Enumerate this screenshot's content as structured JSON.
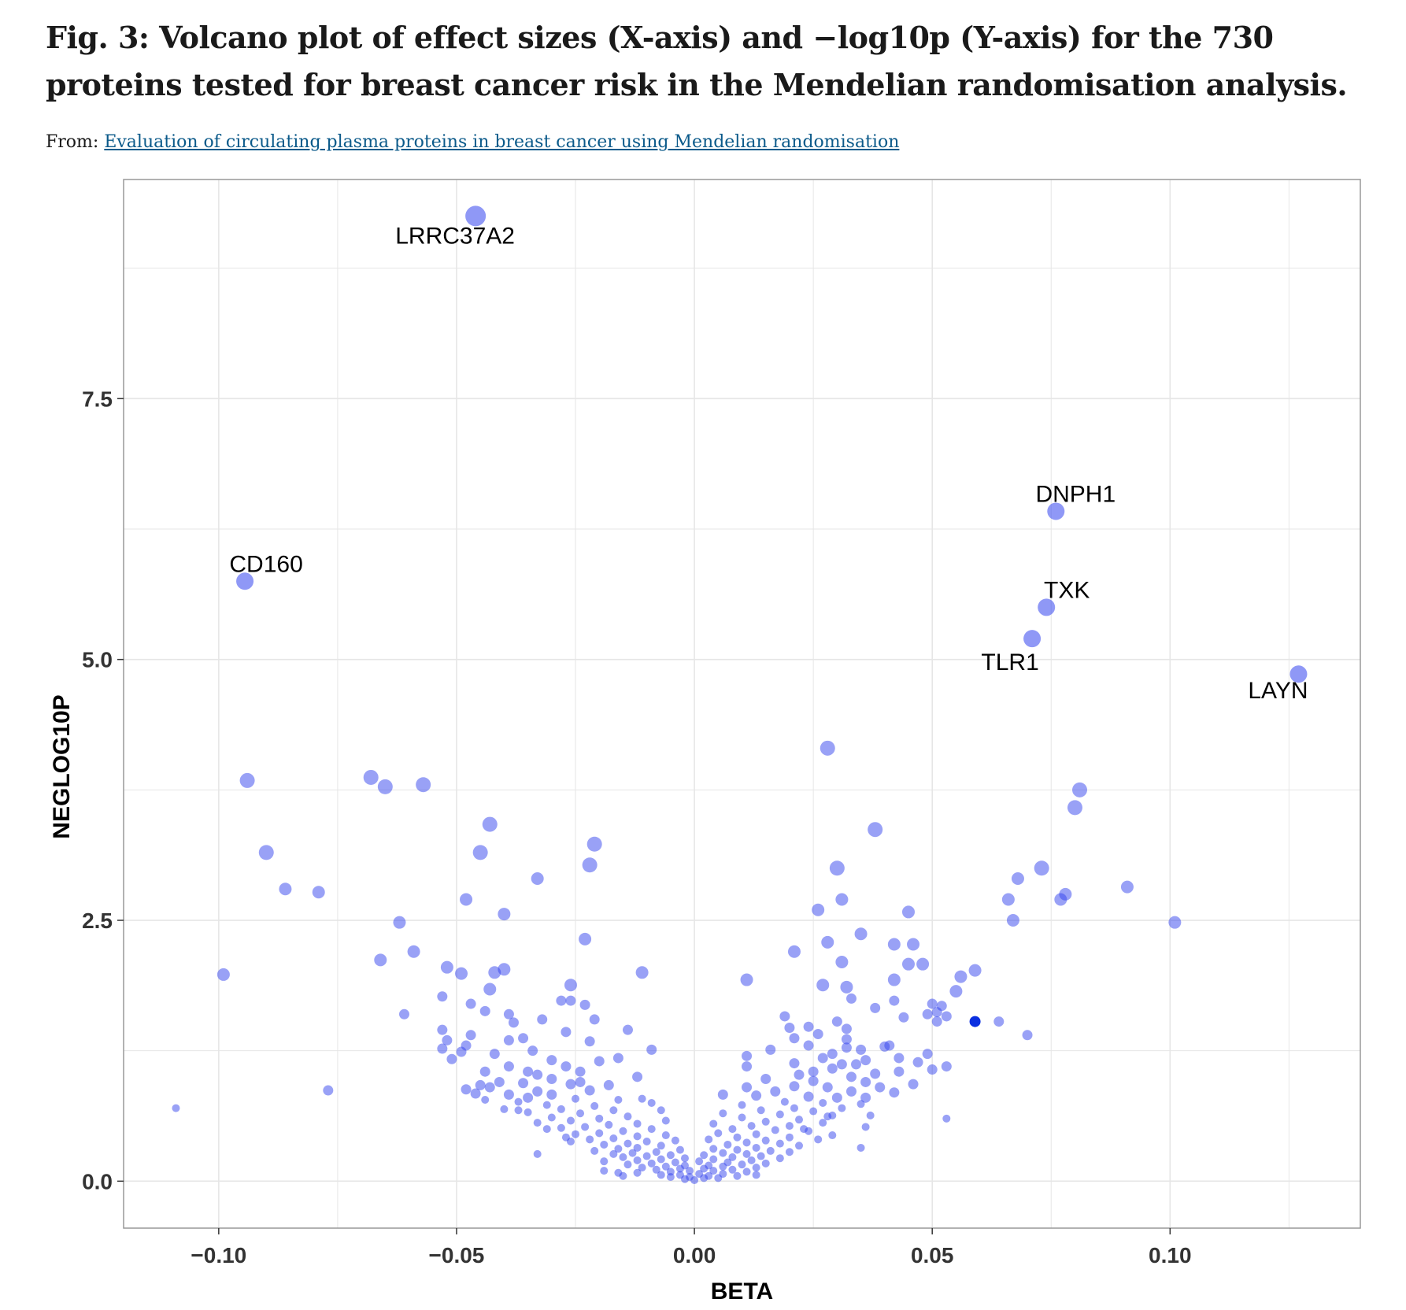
{
  "figure": {
    "title": "Fig. 3: Volcano plot of effect sizes (X-axis) and −log10p (Y-axis) for the 730 proteins tested for breast cancer risk in the Mendelian randomisation analysis.",
    "from_prefix": "From:",
    "source_link": "Evaluation of circulating plasma proteins in breast cancer using Mendelian randomisation"
  },
  "chart_data": {
    "type": "scatter",
    "xlabel": "BETA",
    "ylabel": "NEGLOG10P",
    "xlim": [
      -0.12,
      0.14
    ],
    "ylim": [
      -0.45,
      9.6
    ],
    "x_ticks": [
      -0.1,
      -0.05,
      0.0,
      0.05,
      0.1
    ],
    "x_tick_labels": [
      "−0.10",
      "−0.05",
      "0.00",
      "0.05",
      "0.10"
    ],
    "y_ticks": [
      0.0,
      2.5,
      5.0,
      7.5
    ],
    "y_tick_labels": [
      "0.0",
      "2.5",
      "5.0",
      "7.5"
    ],
    "grid": true,
    "colors": {
      "point": "#3344ee",
      "highlight": "#0a2fe0",
      "grid": "#e6e6e6",
      "panel_border": "#999999"
    },
    "labeled_points": [
      {
        "label": "LRRC37A2",
        "x": -0.046,
        "y": 9.25
      },
      {
        "label": "DNPH1",
        "x": 0.076,
        "y": 6.42
      },
      {
        "label": "CD160",
        "x": -0.0945,
        "y": 5.75
      },
      {
        "label": "TXK",
        "x": 0.074,
        "y": 5.5
      },
      {
        "label": "TLR1",
        "x": 0.071,
        "y": 5.2
      },
      {
        "label": "LAYN",
        "x": 0.127,
        "y": 4.86
      }
    ],
    "points": [
      {
        "x": 0.028,
        "y": 4.15
      },
      {
        "x": -0.094,
        "y": 3.84
      },
      {
        "x": -0.068,
        "y": 3.87
      },
      {
        "x": -0.065,
        "y": 3.78
      },
      {
        "x": -0.057,
        "y": 3.8
      },
      {
        "x": 0.081,
        "y": 3.75
      },
      {
        "x": 0.08,
        "y": 3.58
      },
      {
        "x": -0.043,
        "y": 3.42
      },
      {
        "x": 0.038,
        "y": 3.37
      },
      {
        "x": -0.021,
        "y": 3.23
      },
      {
        "x": -0.045,
        "y": 3.15
      },
      {
        "x": -0.09,
        "y": 3.15
      },
      {
        "x": -0.022,
        "y": 3.03
      },
      {
        "x": 0.03,
        "y": 3.0
      },
      {
        "x": 0.073,
        "y": 3.0
      },
      {
        "x": 0.068,
        "y": 2.9
      },
      {
        "x": -0.033,
        "y": 2.9
      },
      {
        "x": 0.091,
        "y": 2.82
      },
      {
        "x": -0.086,
        "y": 2.8
      },
      {
        "x": -0.079,
        "y": 2.77
      },
      {
        "x": 0.078,
        "y": 2.75
      },
      {
        "x": 0.077,
        "y": 2.7
      },
      {
        "x": -0.048,
        "y": 2.7
      },
      {
        "x": 0.066,
        "y": 2.7
      },
      {
        "x": 0.031,
        "y": 2.7
      },
      {
        "x": 0.026,
        "y": 2.6
      },
      {
        "x": 0.045,
        "y": 2.58
      },
      {
        "x": -0.04,
        "y": 2.56
      },
      {
        "x": 0.067,
        "y": 2.5
      },
      {
        "x": 0.101,
        "y": 2.48
      },
      {
        "x": -0.062,
        "y": 2.48
      },
      {
        "x": 0.035,
        "y": 2.37
      },
      {
        "x": -0.023,
        "y": 2.32
      },
      {
        "x": 0.028,
        "y": 2.29
      },
      {
        "x": 0.042,
        "y": 2.27
      },
      {
        "x": 0.046,
        "y": 2.27
      },
      {
        "x": -0.059,
        "y": 2.2
      },
      {
        "x": 0.021,
        "y": 2.2
      },
      {
        "x": -0.066,
        "y": 2.12
      },
      {
        "x": 0.031,
        "y": 2.1
      },
      {
        "x": 0.045,
        "y": 2.08
      },
      {
        "x": 0.048,
        "y": 2.08
      },
      {
        "x": -0.052,
        "y": 2.05
      },
      {
        "x": -0.04,
        "y": 2.03
      },
      {
        "x": -0.011,
        "y": 2.0
      },
      {
        "x": -0.049,
        "y": 1.99
      },
      {
        "x": -0.099,
        "y": 1.98
      },
      {
        "x": -0.042,
        "y": 2.0
      },
      {
        "x": 0.059,
        "y": 2.02
      },
      {
        "x": 0.056,
        "y": 1.96
      },
      {
        "x": 0.042,
        "y": 1.93
      },
      {
        "x": 0.011,
        "y": 1.93
      },
      {
        "x": -0.026,
        "y": 1.88
      },
      {
        "x": 0.027,
        "y": 1.88
      },
      {
        "x": 0.032,
        "y": 1.86
      },
      {
        "x": -0.043,
        "y": 1.84
      },
      {
        "x": 0.055,
        "y": 1.82
      },
      {
        "x": -0.053,
        "y": 1.77
      },
      {
        "x": -0.028,
        "y": 1.73
      },
      {
        "x": -0.026,
        "y": 1.73
      },
      {
        "x": 0.033,
        "y": 1.75
      },
      {
        "x": 0.042,
        "y": 1.73
      },
      {
        "x": -0.047,
        "y": 1.7
      },
      {
        "x": -0.023,
        "y": 1.69
      },
      {
        "x": 0.05,
        "y": 1.7
      },
      {
        "x": 0.052,
        "y": 1.68
      },
      {
        "x": 0.038,
        "y": 1.66
      },
      {
        "x": 0.051,
        "y": 1.62
      },
      {
        "x": -0.061,
        "y": 1.6
      },
      {
        "x": -0.044,
        "y": 1.63
      },
      {
        "x": -0.039,
        "y": 1.6
      },
      {
        "x": 0.019,
        "y": 1.58
      },
      {
        "x": 0.049,
        "y": 1.6
      },
      {
        "x": 0.053,
        "y": 1.58
      },
      {
        "x": 0.044,
        "y": 1.57
      },
      {
        "x": -0.032,
        "y": 1.55
      },
      {
        "x": -0.021,
        "y": 1.55
      },
      {
        "x": 0.03,
        "y": 1.53
      },
      {
        "x": -0.038,
        "y": 1.52
      },
      {
        "x": 0.064,
        "y": 1.53
      },
      {
        "x": 0.051,
        "y": 1.53
      },
      {
        "x": 0.02,
        "y": 1.47
      },
      {
        "x": 0.024,
        "y": 1.48
      },
      {
        "x": -0.014,
        "y": 1.45
      },
      {
        "x": -0.053,
        "y": 1.45
      },
      {
        "x": 0.032,
        "y": 1.46
      },
      {
        "x": -0.027,
        "y": 1.43
      },
      {
        "x": 0.026,
        "y": 1.41
      },
      {
        "x": 0.07,
        "y": 1.4
      },
      {
        "x": -0.047,
        "y": 1.4
      },
      {
        "x": -0.052,
        "y": 1.35
      },
      {
        "x": -0.036,
        "y": 1.37
      },
      {
        "x": -0.039,
        "y": 1.35
      },
      {
        "x": 0.021,
        "y": 1.37
      },
      {
        "x": 0.032,
        "y": 1.36
      },
      {
        "x": -0.022,
        "y": 1.34
      },
      {
        "x": -0.048,
        "y": 1.3
      },
      {
        "x": 0.024,
        "y": 1.3
      },
      {
        "x": 0.041,
        "y": 1.3
      },
      {
        "x": -0.053,
        "y": 1.27
      },
      {
        "x": 0.032,
        "y": 1.28
      },
      {
        "x": 0.04,
        "y": 1.29
      },
      {
        "x": -0.009,
        "y": 1.26
      },
      {
        "x": 0.016,
        "y": 1.26
      },
      {
        "x": 0.035,
        "y": 1.26
      },
      {
        "x": -0.034,
        "y": 1.25
      },
      {
        "x": -0.049,
        "y": 1.24
      },
      {
        "x": 0.049,
        "y": 1.22
      },
      {
        "x": -0.042,
        "y": 1.22
      },
      {
        "x": 0.011,
        "y": 1.2
      },
      {
        "x": -0.016,
        "y": 1.18
      },
      {
        "x": 0.027,
        "y": 1.18
      },
      {
        "x": 0.043,
        "y": 1.18
      },
      {
        "x": -0.051,
        "y": 1.17
      },
      {
        "x": 0.036,
        "y": 1.16
      },
      {
        "x": -0.03,
        "y": 1.16
      },
      {
        "x": -0.02,
        "y": 1.15
      },
      {
        "x": 0.047,
        "y": 1.14
      },
      {
        "x": 0.021,
        "y": 1.13
      },
      {
        "x": 0.031,
        "y": 1.12
      },
      {
        "x": 0.053,
        "y": 1.1
      },
      {
        "x": -0.039,
        "y": 1.1
      },
      {
        "x": 0.011,
        "y": 1.1
      },
      {
        "x": 0.029,
        "y": 1.08
      },
      {
        "x": 0.05,
        "y": 1.07
      },
      {
        "x": -0.044,
        "y": 1.05
      },
      {
        "x": -0.035,
        "y": 1.05
      },
      {
        "x": -0.024,
        "y": 1.05
      },
      {
        "x": 0.043,
        "y": 1.05
      },
      {
        "x": 0.038,
        "y": 1.03
      },
      {
        "x": 0.022,
        "y": 1.02
      },
      {
        "x": -0.012,
        "y": 1.0
      },
      {
        "x": 0.033,
        "y": 1.0
      },
      {
        "x": -0.03,
        "y": 0.98
      },
      {
        "x": 0.015,
        "y": 0.98
      },
      {
        "x": 0.025,
        "y": 0.96
      },
      {
        "x": 0.036,
        "y": 0.95
      },
      {
        "x": 0.046,
        "y": 0.93
      },
      {
        "x": -0.041,
        "y": 0.95
      },
      {
        "x": -0.036,
        "y": 0.94
      },
      {
        "x": -0.026,
        "y": 0.93
      },
      {
        "x": -0.018,
        "y": 0.92
      },
      {
        "x": -0.043,
        "y": 0.9
      },
      {
        "x": 0.021,
        "y": 0.91
      },
      {
        "x": 0.011,
        "y": 0.9
      },
      {
        "x": 0.028,
        "y": 0.9
      },
      {
        "x": -0.077,
        "y": 0.87
      },
      {
        "x": -0.048,
        "y": 0.88
      },
      {
        "x": -0.033,
        "y": 0.86
      },
      {
        "x": -0.022,
        "y": 0.87
      },
      {
        "x": 0.017,
        "y": 0.86
      },
      {
        "x": 0.033,
        "y": 0.86
      },
      {
        "x": 0.042,
        "y": 0.85
      },
      {
        "x": -0.046,
        "y": 0.84
      },
      {
        "x": -0.039,
        "y": 0.83
      },
      {
        "x": -0.03,
        "y": 0.83
      },
      {
        "x": 0.006,
        "y": 0.83
      },
      {
        "x": 0.013,
        "y": 0.82
      },
      {
        "x": 0.024,
        "y": 0.81
      },
      {
        "x": 0.03,
        "y": 0.8
      },
      {
        "x": 0.036,
        "y": 0.8
      },
      {
        "x": -0.035,
        "y": 0.8
      },
      {
        "x": -0.025,
        "y": 0.79
      },
      {
        "x": -0.016,
        "y": 0.78
      },
      {
        "x": -0.011,
        "y": 0.79
      },
      {
        "x": -0.044,
        "y": 0.78
      },
      {
        "x": -0.037,
        "y": 0.76
      },
      {
        "x": -0.009,
        "y": 0.75
      },
      {
        "x": 0.019,
        "y": 0.76
      },
      {
        "x": 0.027,
        "y": 0.75
      },
      {
        "x": 0.035,
        "y": 0.74
      },
      {
        "x": 0.01,
        "y": 0.73
      },
      {
        "x": -0.031,
        "y": 0.73
      },
      {
        "x": -0.021,
        "y": 0.72
      },
      {
        "x": -0.109,
        "y": 0.7
      },
      {
        "x": 0.021,
        "y": 0.7
      },
      {
        "x": 0.031,
        "y": 0.7
      },
      {
        "x": -0.04,
        "y": 0.69
      },
      {
        "x": -0.028,
        "y": 0.69
      },
      {
        "x": -0.017,
        "y": 0.68
      },
      {
        "x": -0.007,
        "y": 0.68
      },
      {
        "x": 0.014,
        "y": 0.68
      },
      {
        "x": 0.025,
        "y": 0.67
      },
      {
        "x": -0.035,
        "y": 0.66
      },
      {
        "x": -0.024,
        "y": 0.65
      },
      {
        "x": 0.006,
        "y": 0.65
      },
      {
        "x": 0.018,
        "y": 0.64
      },
      {
        "x": 0.029,
        "y": 0.63
      },
      {
        "x": 0.037,
        "y": 0.63
      },
      {
        "x": -0.014,
        "y": 0.62
      },
      {
        "x": -0.03,
        "y": 0.61
      },
      {
        "x": 0.01,
        "y": 0.61
      },
      {
        "x": -0.02,
        "y": 0.6
      },
      {
        "x": 0.022,
        "y": 0.59
      },
      {
        "x": 0.053,
        "y": 0.6
      },
      {
        "x": -0.006,
        "y": 0.58
      },
      {
        "x": -0.026,
        "y": 0.58
      },
      {
        "x": 0.015,
        "y": 0.57
      },
      {
        "x": -0.033,
        "y": 0.56
      },
      {
        "x": 0.027,
        "y": 0.56
      },
      {
        "x": -0.012,
        "y": 0.55
      },
      {
        "x": 0.004,
        "y": 0.55
      },
      {
        "x": -0.018,
        "y": 0.54
      },
      {
        "x": 0.012,
        "y": 0.53
      },
      {
        "x": 0.02,
        "y": 0.53
      },
      {
        "x": -0.023,
        "y": 0.52
      },
      {
        "x": -0.028,
        "y": 0.51
      },
      {
        "x": 0.036,
        "y": 0.52
      },
      {
        "x": -0.009,
        "y": 0.5
      },
      {
        "x": 0.008,
        "y": 0.5
      },
      {
        "x": 0.017,
        "y": 0.49
      },
      {
        "x": 0.024,
        "y": 0.48
      },
      {
        "x": -0.015,
        "y": 0.48
      },
      {
        "x": -0.02,
        "y": 0.46
      },
      {
        "x": -0.025,
        "y": 0.45
      },
      {
        "x": 0.005,
        "y": 0.46
      },
      {
        "x": 0.013,
        "y": 0.45
      },
      {
        "x": 0.029,
        "y": 0.44
      },
      {
        "x": -0.006,
        "y": 0.44
      },
      {
        "x": -0.012,
        "y": 0.43
      },
      {
        "x": 0.009,
        "y": 0.42
      },
      {
        "x": 0.02,
        "y": 0.42
      },
      {
        "x": -0.017,
        "y": 0.41
      },
      {
        "x": -0.022,
        "y": 0.4
      },
      {
        "x": 0.026,
        "y": 0.4
      },
      {
        "x": 0.003,
        "y": 0.4
      },
      {
        "x": -0.004,
        "y": 0.39
      },
      {
        "x": 0.015,
        "y": 0.39
      },
      {
        "x": -0.026,
        "y": 0.38
      },
      {
        "x": -0.01,
        "y": 0.38
      },
      {
        "x": 0.011,
        "y": 0.37
      },
      {
        "x": 0.018,
        "y": 0.36
      },
      {
        "x": -0.014,
        "y": 0.36
      },
      {
        "x": -0.019,
        "y": 0.35
      },
      {
        "x": 0.007,
        "y": 0.35
      },
      {
        "x": 0.022,
        "y": 0.34
      },
      {
        "x": -0.007,
        "y": 0.34
      },
      {
        "x": 0.035,
        "y": 0.32
      },
      {
        "x": -0.012,
        "y": 0.32
      },
      {
        "x": 0.013,
        "y": 0.32
      },
      {
        "x": -0.016,
        "y": 0.31
      },
      {
        "x": 0.004,
        "y": 0.31
      },
      {
        "x": -0.003,
        "y": 0.3
      },
      {
        "x": 0.009,
        "y": 0.3
      },
      {
        "x": -0.021,
        "y": 0.29
      },
      {
        "x": 0.016,
        "y": 0.29
      },
      {
        "x": -0.008,
        "y": 0.28
      },
      {
        "x": 0.02,
        "y": 0.28
      },
      {
        "x": -0.013,
        "y": 0.27
      },
      {
        "x": 0.006,
        "y": 0.27
      },
      {
        "x": -0.033,
        "y": 0.26
      },
      {
        "x": -0.017,
        "y": 0.26
      },
      {
        "x": 0.011,
        "y": 0.26
      },
      {
        "x": -0.005,
        "y": 0.25
      },
      {
        "x": 0.002,
        "y": 0.25
      },
      {
        "x": 0.014,
        "y": 0.24
      },
      {
        "x": -0.01,
        "y": 0.24
      },
      {
        "x": -0.015,
        "y": 0.23
      },
      {
        "x": 0.008,
        "y": 0.23
      },
      {
        "x": 0.018,
        "y": 0.22
      },
      {
        "x": -0.002,
        "y": 0.22
      },
      {
        "x": -0.007,
        "y": 0.21
      },
      {
        "x": 0.004,
        "y": 0.21
      },
      {
        "x": -0.012,
        "y": 0.2
      },
      {
        "x": 0.012,
        "y": 0.2
      },
      {
        "x": -0.019,
        "y": 0.19
      },
      {
        "x": 0.001,
        "y": 0.19
      },
      {
        "x": -0.004,
        "y": 0.18
      },
      {
        "x": 0.007,
        "y": 0.18
      },
      {
        "x": 0.015,
        "y": 0.17
      },
      {
        "x": -0.009,
        "y": 0.17
      },
      {
        "x": -0.014,
        "y": 0.16
      },
      {
        "x": 0.01,
        "y": 0.16
      },
      {
        "x": 0.003,
        "y": 0.15
      },
      {
        "x": -0.002,
        "y": 0.15
      },
      {
        "x": -0.006,
        "y": 0.14
      },
      {
        "x": 0.006,
        "y": 0.14
      },
      {
        "x": -0.011,
        "y": 0.13
      },
      {
        "x": 0.013,
        "y": 0.13
      },
      {
        "x": -0.003,
        "y": 0.12
      },
      {
        "x": 0.002,
        "y": 0.12
      },
      {
        "x": -0.008,
        "y": 0.11
      },
      {
        "x": 0.008,
        "y": 0.11
      },
      {
        "x": -0.001,
        "y": 0.1
      },
      {
        "x": 0.004,
        "y": 0.1
      },
      {
        "x": -0.005,
        "y": 0.09
      },
      {
        "x": 0.011,
        "y": 0.09
      },
      {
        "x": -0.016,
        "y": 0.08
      },
      {
        "x": -0.012,
        "y": 0.08
      },
      {
        "x": 0.001,
        "y": 0.07
      },
      {
        "x": 0.006,
        "y": 0.07
      },
      {
        "x": -0.003,
        "y": 0.06
      },
      {
        "x": -0.007,
        "y": 0.06
      },
      {
        "x": 0.003,
        "y": 0.05
      },
      {
        "x": 0.009,
        "y": 0.05
      },
      {
        "x": -0.001,
        "y": 0.04
      },
      {
        "x": -0.005,
        "y": 0.04
      },
      {
        "x": 0.002,
        "y": 0.03
      },
      {
        "x": 0.005,
        "y": 0.03
      },
      {
        "x": -0.002,
        "y": 0.02
      },
      {
        "x": 0.0,
        "y": 0.01
      },
      {
        "x": -0.019,
        "y": 0.1
      },
      {
        "x": -0.015,
        "y": 0.05
      },
      {
        "x": 0.013,
        "y": 0.06
      },
      {
        "x": -0.027,
        "y": 0.42
      },
      {
        "x": -0.031,
        "y": 0.5
      },
      {
        "x": -0.037,
        "y": 0.68
      },
      {
        "x": -0.045,
        "y": 0.92
      },
      {
        "x": 0.039,
        "y": 0.9
      },
      {
        "x": 0.028,
        "y": 0.62
      },
      {
        "x": 0.023,
        "y": 0.5
      },
      {
        "x": -0.024,
        "y": 0.95
      },
      {
        "x": -0.027,
        "y": 1.1
      },
      {
        "x": 0.025,
        "y": 1.05
      },
      {
        "x": 0.029,
        "y": 1.22
      },
      {
        "x": -0.033,
        "y": 1.02
      },
      {
        "x": 0.034,
        "y": 1.12
      }
    ],
    "highlight_points": [
      {
        "x": 0.059,
        "y": 1.53
      }
    ]
  }
}
